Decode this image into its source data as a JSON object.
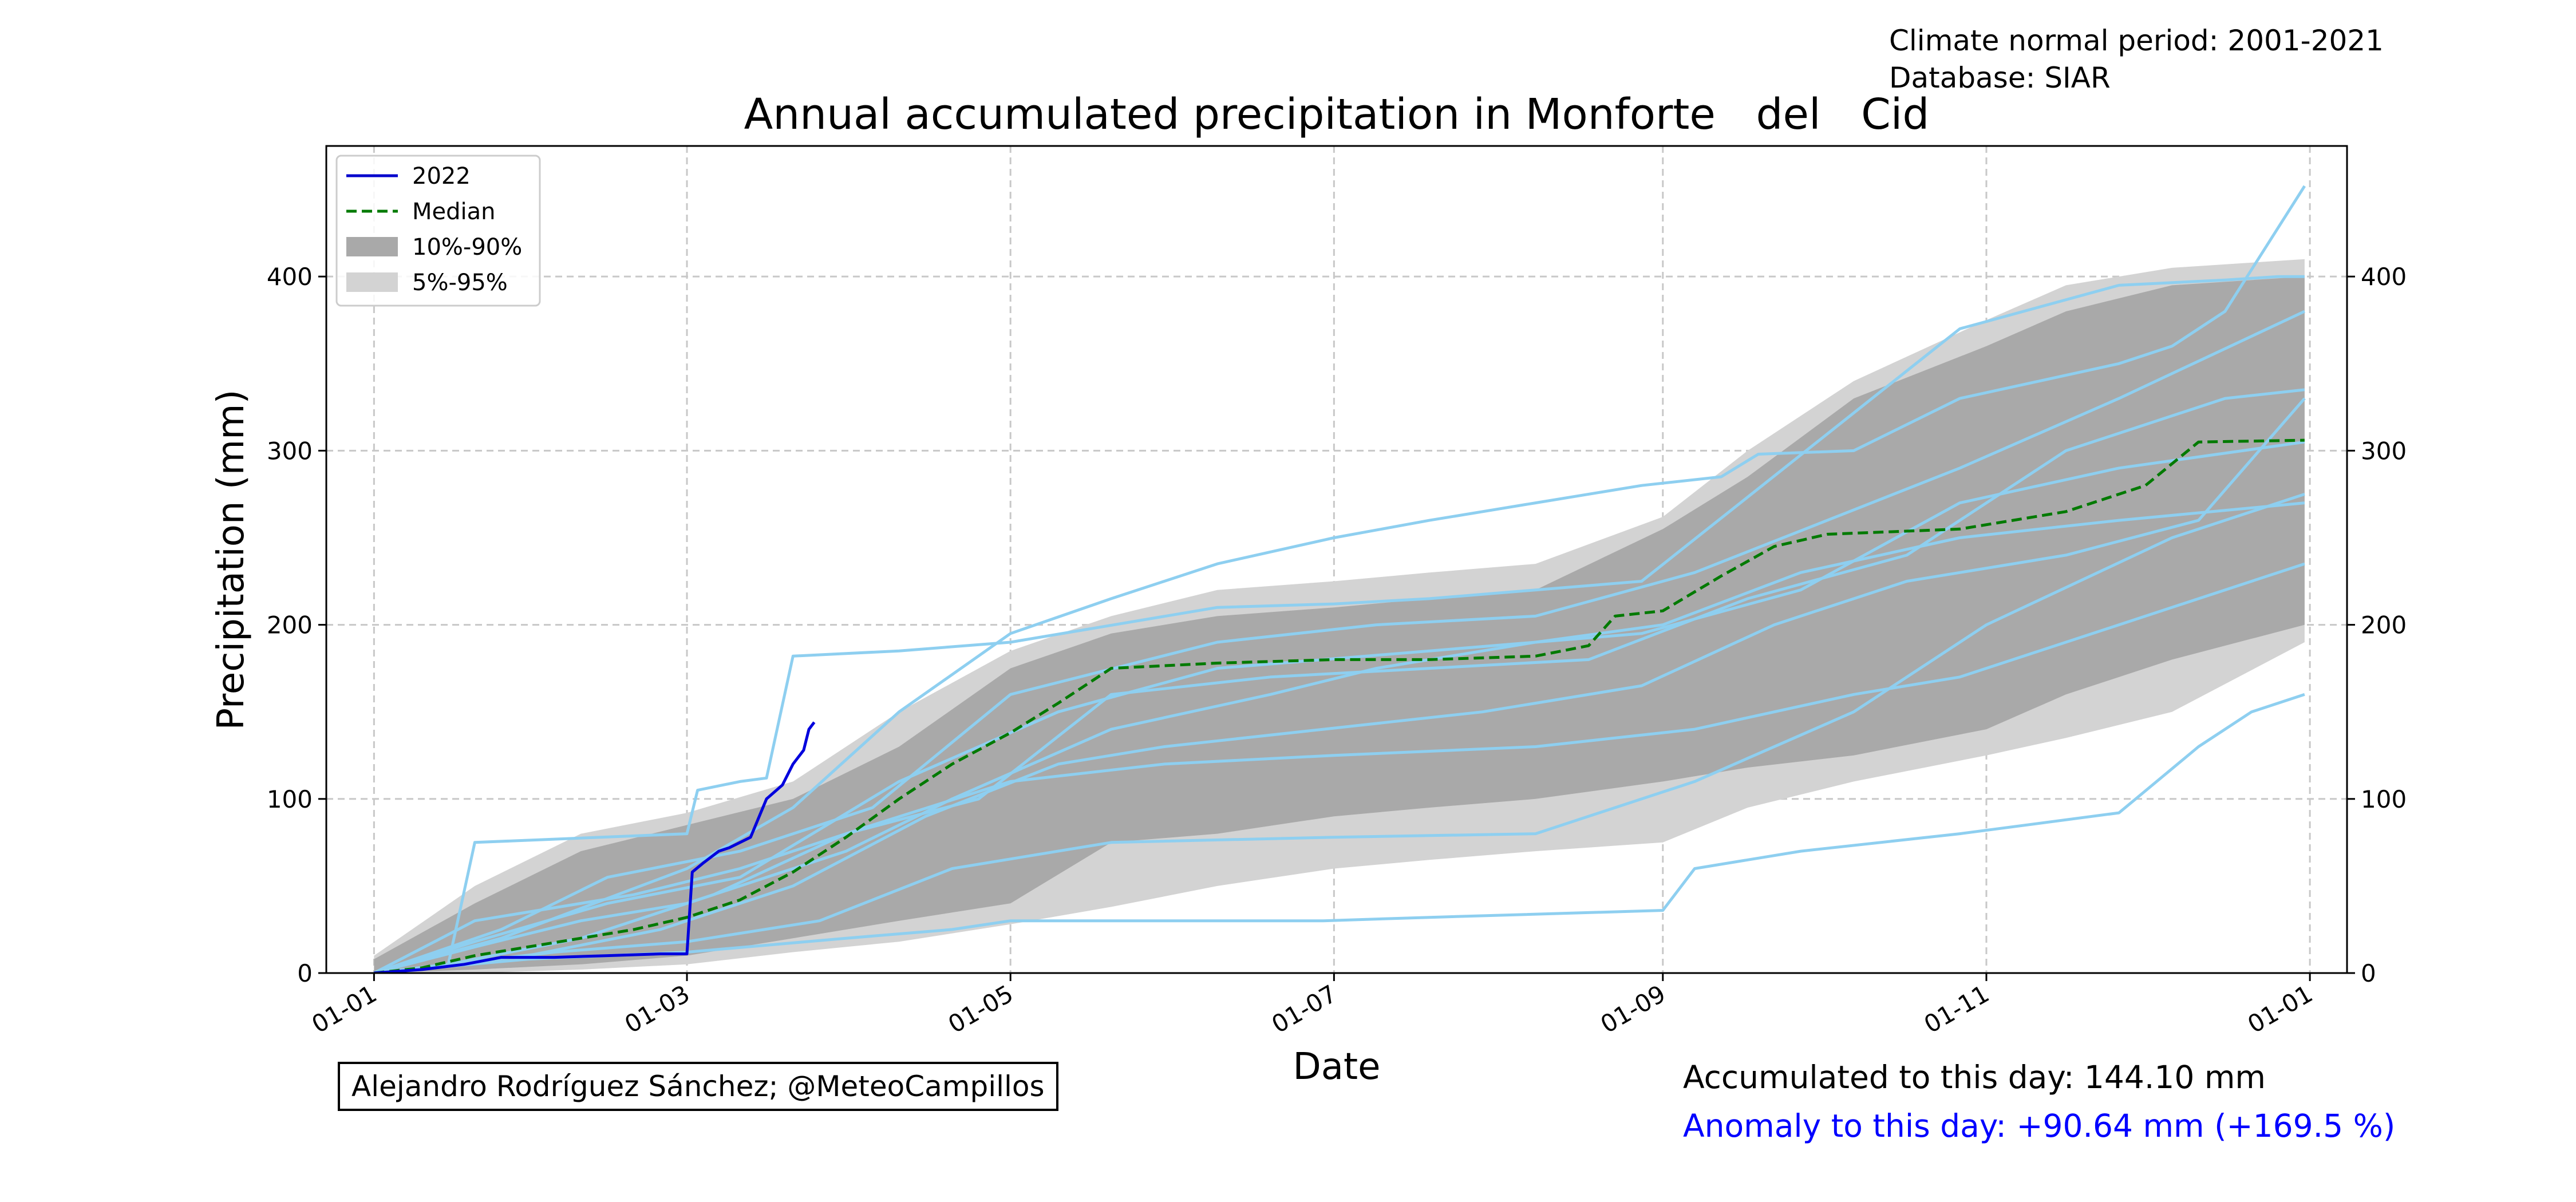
{
  "header": {
    "period_label": "Climate normal period: 2001-2021",
    "database_label": "Database: SIAR"
  },
  "footer": {
    "credit": "Alejandro Rodríguez Sánchez; @MeteoCampillos",
    "accumulated": "Accumulated to this day: 144.10 mm",
    "anomaly": "Anomaly to this day: +90.64 mm (+169.5 %)",
    "anomaly_color": "#0000ff"
  },
  "chart_data": {
    "type": "line",
    "title": "Annual accumulated precipitation in Monforte   del   Cid",
    "xlabel": "Date",
    "ylabel": "Precipitation (mm)",
    "x_unit": "day_of_year",
    "xlim": [
      -8,
      373
    ],
    "ylim": [
      0,
      475
    ],
    "x_ticks": [
      {
        "x": 1,
        "label": "01-01"
      },
      {
        "x": 60,
        "label": "01-03"
      },
      {
        "x": 121,
        "label": "01-05"
      },
      {
        "x": 182,
        "label": "01-07"
      },
      {
        "x": 244,
        "label": "01-09"
      },
      {
        "x": 305,
        "label": "01-11"
      },
      {
        "x": 366,
        "label": "01-01"
      }
    ],
    "y_ticks": [
      0,
      100,
      200,
      300,
      400
    ],
    "grid": true,
    "legend_position": "top-left",
    "legend": [
      {
        "label": "2022",
        "kind": "line",
        "color": "#0000cc"
      },
      {
        "label": "Median",
        "kind": "dashed",
        "color": "#007a00"
      },
      {
        "label": "10%-90%",
        "kind": "patch",
        "color": "#a9a9a9"
      },
      {
        "label": "5%-95%",
        "kind": "patch",
        "color": "#d3d3d3"
      }
    ],
    "bands": [
      {
        "name": "5%-95%",
        "color": "#d3d3d3",
        "x": [
          1,
          20,
          40,
          60,
          80,
          100,
          121,
          140,
          160,
          182,
          200,
          220,
          244,
          260,
          280,
          305,
          320,
          340,
          365
        ],
        "lower": [
          0,
          0,
          2,
          5,
          12,
          18,
          28,
          38,
          50,
          60,
          65,
          70,
          75,
          95,
          110,
          125,
          135,
          150,
          190
        ],
        "upper": [
          10,
          50,
          80,
          92,
          110,
          150,
          185,
          205,
          220,
          225,
          230,
          235,
          262,
          300,
          340,
          375,
          395,
          405,
          410
        ]
      },
      {
        "name": "10%-90%",
        "color": "#a9a9a9",
        "x": [
          1,
          20,
          40,
          60,
          80,
          100,
          121,
          140,
          160,
          182,
          200,
          220,
          244,
          260,
          280,
          305,
          320,
          340,
          365
        ],
        "lower": [
          0,
          2,
          5,
          10,
          20,
          30,
          40,
          75,
          80,
          90,
          95,
          100,
          110,
          118,
          125,
          140,
          160,
          180,
          200
        ],
        "upper": [
          8,
          40,
          70,
          85,
          100,
          130,
          175,
          195,
          205,
          210,
          215,
          220,
          255,
          285,
          330,
          360,
          380,
          395,
          400
        ]
      }
    ],
    "series": [
      {
        "name": "2022",
        "color": "#0000dd",
        "width": 5,
        "x": [
          1,
          10,
          18,
          25,
          35,
          45,
          55,
          60,
          61,
          63,
          66,
          68,
          72,
          75,
          78,
          80,
          82,
          83,
          84
        ],
        "y": [
          0,
          2,
          5,
          9,
          9,
          10,
          11,
          11,
          58,
          63,
          70,
          72,
          78,
          100,
          108,
          120,
          128,
          140,
          144
        ]
      },
      {
        "name": "Median",
        "color": "#007a00",
        "width": 5,
        "dash": "18,9",
        "x": [
          1,
          10,
          20,
          30,
          40,
          50,
          60,
          70,
          80,
          90,
          100,
          110,
          121,
          130,
          140,
          160,
          182,
          200,
          220,
          230,
          235,
          244,
          255,
          265,
          275,
          300,
          310,
          320,
          335,
          345,
          365
        ],
        "y": [
          0,
          3,
          10,
          15,
          20,
          25,
          32,
          42,
          58,
          78,
          100,
          120,
          138,
          155,
          175,
          178,
          180,
          180,
          182,
          188,
          205,
          208,
          228,
          245,
          252,
          255,
          260,
          265,
          280,
          305,
          306
        ]
      }
    ],
    "years": [
      {
        "color": "#8ecff0",
        "x": [
          1,
          15,
          20,
          60,
          62,
          70,
          75,
          80,
          100,
          121,
          160,
          182,
          200,
          240,
          300,
          330,
          350,
          360,
          365
        ],
        "y": [
          0,
          5,
          75,
          80,
          105,
          110,
          112,
          182,
          185,
          190,
          210,
          212,
          215,
          225,
          370,
          395,
          398,
          400,
          400
        ]
      },
      {
        "color": "#8ecff0",
        "x": [
          1,
          30,
          60,
          90,
          110,
          121,
          150,
          160,
          180,
          200,
          244,
          250,
          270,
          300,
          330,
          345,
          355,
          365
        ],
        "y": [
          0,
          8,
          12,
          20,
          25,
          30,
          30,
          30,
          30,
          32,
          36,
          60,
          70,
          80,
          92,
          130,
          150,
          160
        ]
      },
      {
        "color": "#8ecff0",
        "x": [
          1,
          25,
          60,
          80,
          100,
          121,
          140,
          160,
          182,
          200,
          220,
          240,
          255,
          262,
          280,
          300,
          330,
          340,
          350,
          365
        ],
        "y": [
          0,
          20,
          60,
          95,
          150,
          195,
          215,
          235,
          250,
          260,
          270,
          280,
          285,
          298,
          300,
          330,
          350,
          360,
          380,
          452
        ]
      },
      {
        "color": "#8ecff0",
        "x": [
          1,
          20,
          40,
          60,
          90,
          110,
          140,
          170,
          190,
          220,
          244,
          270,
          300,
          330,
          365
        ],
        "y": [
          0,
          15,
          30,
          40,
          70,
          100,
          140,
          160,
          175,
          190,
          200,
          230,
          250,
          260,
          270
        ]
      },
      {
        "color": "#8ecff0",
        "x": [
          1,
          30,
          55,
          80,
          105,
          130,
          150,
          180,
          210,
          240,
          265,
          290,
          320,
          345,
          365
        ],
        "y": [
          0,
          10,
          25,
          50,
          90,
          120,
          130,
          140,
          150,
          165,
          200,
          225,
          240,
          260,
          330
        ]
      },
      {
        "color": "#8ecff0",
        "x": [
          1,
          20,
          50,
          70,
          95,
          121,
          150,
          182,
          220,
          250,
          280,
          300,
          330,
          365
        ],
        "y": [
          0,
          30,
          45,
          60,
          85,
          110,
          120,
          125,
          130,
          140,
          160,
          170,
          200,
          235
        ]
      },
      {
        "color": "#8ecff0",
        "x": [
          1,
          15,
          40,
          65,
          90,
          115,
          140,
          170,
          200,
          230,
          260,
          290,
          320,
          350,
          365
        ],
        "y": [
          0,
          5,
          20,
          45,
          80,
          100,
          160,
          170,
          175,
          180,
          215,
          240,
          300,
          330,
          335
        ]
      },
      {
        "color": "#8ecff0",
        "x": [
          1,
          25,
          45,
          70,
          95,
          121,
          160,
          190,
          220,
          250,
          275,
          300,
          330,
          365
        ],
        "y": [
          0,
          25,
          55,
          70,
          95,
          160,
          190,
          200,
          205,
          230,
          260,
          290,
          330,
          380
        ]
      },
      {
        "color": "#8ecff0",
        "x": [
          1,
          35,
          60,
          85,
          110,
          140,
          182,
          220,
          250,
          280,
          305,
          340,
          365
        ],
        "y": [
          0,
          12,
          18,
          30,
          60,
          75,
          78,
          80,
          110,
          150,
          200,
          250,
          275
        ]
      },
      {
        "color": "#8ecff0",
        "x": [
          1,
          20,
          45,
          70,
          100,
          130,
          160,
          200,
          240,
          270,
          300,
          330,
          365
        ],
        "y": [
          0,
          18,
          40,
          55,
          110,
          150,
          175,
          185,
          195,
          220,
          270,
          290,
          305
        ]
      }
    ]
  }
}
